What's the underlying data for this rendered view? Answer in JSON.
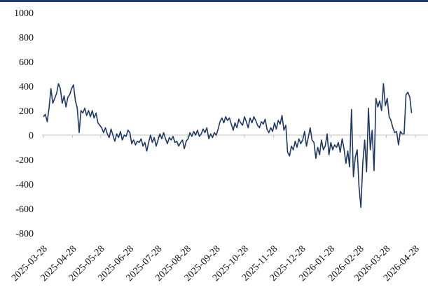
{
  "chart_data": {
    "type": "line",
    "title": "",
    "xlabel": "",
    "ylabel": "",
    "ylim": [
      -800,
      1000
    ],
    "y_ticks": [
      "1000",
      "800",
      "600",
      "400",
      "200",
      "0",
      "-200",
      "-400",
      "-600",
      "-800"
    ],
    "x_ticks": [
      "2025-03-28",
      "2025-04-28",
      "2025-05-28",
      "2025-06-28",
      "2025-07-28",
      "2025-08-28",
      "2025-09-28",
      "2025-10-28",
      "2025-11-28",
      "2025-12-28",
      "2026-01-28",
      "2026-02-28",
      "2026-03-28",
      "2026-04-28"
    ],
    "grid": false,
    "legend": "none",
    "colors": {
      "line": "#1f3864",
      "axis": "#bfbfbf",
      "top_rule": "#1f3b6e"
    },
    "series": [
      {
        "values": [
          [
            "2025-03-28",
            150
          ],
          [
            "2025-03-30",
            170
          ],
          [
            "2025-04-01",
            110
          ],
          [
            "2025-04-03",
            220
          ],
          [
            "2025-04-05",
            380
          ],
          [
            "2025-04-07",
            260
          ],
          [
            "2025-04-09",
            300
          ],
          [
            "2025-04-11",
            340
          ],
          [
            "2025-04-13",
            420
          ],
          [
            "2025-04-15",
            380
          ],
          [
            "2025-04-17",
            260
          ],
          [
            "2025-04-19",
            320
          ],
          [
            "2025-04-21",
            230
          ],
          [
            "2025-04-23",
            310
          ],
          [
            "2025-04-25",
            330
          ],
          [
            "2025-04-27",
            380
          ],
          [
            "2025-04-29",
            410
          ],
          [
            "2025-05-01",
            280
          ],
          [
            "2025-05-03",
            220
          ],
          [
            "2025-05-05",
            20
          ],
          [
            "2025-05-07",
            200
          ],
          [
            "2025-05-09",
            180
          ],
          [
            "2025-05-11",
            220
          ],
          [
            "2025-05-13",
            160
          ],
          [
            "2025-05-15",
            200
          ],
          [
            "2025-05-17",
            150
          ],
          [
            "2025-05-19",
            200
          ],
          [
            "2025-05-21",
            140
          ],
          [
            "2025-05-23",
            180
          ],
          [
            "2025-05-25",
            100
          ],
          [
            "2025-05-27",
            80
          ],
          [
            "2025-05-29",
            60
          ],
          [
            "2025-05-31",
            20
          ],
          [
            "2025-06-02",
            60
          ],
          [
            "2025-06-04",
            10
          ],
          [
            "2025-06-06",
            -20
          ],
          [
            "2025-06-08",
            50
          ],
          [
            "2025-06-10",
            0
          ],
          [
            "2025-06-12",
            -50
          ],
          [
            "2025-06-14",
            10
          ],
          [
            "2025-06-16",
            -20
          ],
          [
            "2025-06-18",
            30
          ],
          [
            "2025-06-20",
            -40
          ],
          [
            "2025-06-22",
            0
          ],
          [
            "2025-06-24",
            -10
          ],
          [
            "2025-06-26",
            40
          ],
          [
            "2025-06-28",
            20
          ],
          [
            "2025-06-30",
            -70
          ],
          [
            "2025-07-02",
            -40
          ],
          [
            "2025-07-04",
            -80
          ],
          [
            "2025-07-06",
            -50
          ],
          [
            "2025-07-08",
            -60
          ],
          [
            "2025-07-10",
            -30
          ],
          [
            "2025-07-12",
            -90
          ],
          [
            "2025-07-14",
            -60
          ],
          [
            "2025-07-16",
            -130
          ],
          [
            "2025-07-18",
            -60
          ],
          [
            "2025-07-20",
            0
          ],
          [
            "2025-07-22",
            -60
          ],
          [
            "2025-07-24",
            -20
          ],
          [
            "2025-07-26",
            -90
          ],
          [
            "2025-07-28",
            -40
          ],
          [
            "2025-07-30",
            10
          ],
          [
            "2025-08-01",
            -30
          ],
          [
            "2025-08-03",
            20
          ],
          [
            "2025-08-05",
            -30
          ],
          [
            "2025-08-07",
            -70
          ],
          [
            "2025-08-09",
            -20
          ],
          [
            "2025-08-11",
            -40
          ],
          [
            "2025-08-13",
            -10
          ],
          [
            "2025-08-15",
            -60
          ],
          [
            "2025-08-17",
            -50
          ],
          [
            "2025-08-19",
            -90
          ],
          [
            "2025-08-21",
            -60
          ],
          [
            "2025-08-23",
            -40
          ],
          [
            "2025-08-25",
            -110
          ],
          [
            "2025-08-27",
            -50
          ],
          [
            "2025-08-29",
            -30
          ],
          [
            "2025-08-31",
            20
          ],
          [
            "2025-09-02",
            -10
          ],
          [
            "2025-09-04",
            30
          ],
          [
            "2025-09-06",
            0
          ],
          [
            "2025-09-08",
            40
          ],
          [
            "2025-09-10",
            -10
          ],
          [
            "2025-09-12",
            10
          ],
          [
            "2025-09-14",
            50
          ],
          [
            "2025-09-16",
            20
          ],
          [
            "2025-09-18",
            60
          ],
          [
            "2025-09-20",
            -30
          ],
          [
            "2025-09-22",
            10
          ],
          [
            "2025-09-24",
            -20
          ],
          [
            "2025-09-26",
            20
          ],
          [
            "2025-09-28",
            0
          ],
          [
            "2025-09-30",
            50
          ],
          [
            "2025-10-02",
            110
          ],
          [
            "2025-10-04",
            140
          ],
          [
            "2025-10-06",
            100
          ],
          [
            "2025-10-08",
            150
          ],
          [
            "2025-10-10",
            120
          ],
          [
            "2025-10-12",
            140
          ],
          [
            "2025-10-14",
            90
          ],
          [
            "2025-10-16",
            40
          ],
          [
            "2025-10-18",
            100
          ],
          [
            "2025-10-20",
            60
          ],
          [
            "2025-10-22",
            130
          ],
          [
            "2025-10-24",
            100
          ],
          [
            "2025-10-26",
            80
          ],
          [
            "2025-10-28",
            150
          ],
          [
            "2025-10-30",
            110
          ],
          [
            "2025-11-01",
            60
          ],
          [
            "2025-11-03",
            140
          ],
          [
            "2025-11-05",
            100
          ],
          [
            "2025-11-07",
            150
          ],
          [
            "2025-11-09",
            120
          ],
          [
            "2025-11-11",
            80
          ],
          [
            "2025-11-13",
            60
          ],
          [
            "2025-11-15",
            110
          ],
          [
            "2025-11-17",
            90
          ],
          [
            "2025-11-19",
            130
          ],
          [
            "2025-11-21",
            50
          ],
          [
            "2025-11-23",
            20
          ],
          [
            "2025-11-25",
            60
          ],
          [
            "2025-11-27",
            30
          ],
          [
            "2025-11-29",
            100
          ],
          [
            "2025-12-01",
            50
          ],
          [
            "2025-12-03",
            120
          ],
          [
            "2025-12-05",
            90
          ],
          [
            "2025-12-07",
            160
          ],
          [
            "2025-12-09",
            40
          ],
          [
            "2025-12-11",
            80
          ],
          [
            "2025-12-13",
            -140
          ],
          [
            "2025-12-15",
            -170
          ],
          [
            "2025-12-17",
            -90
          ],
          [
            "2025-12-19",
            -120
          ],
          [
            "2025-12-21",
            -50
          ],
          [
            "2025-12-23",
            -100
          ],
          [
            "2025-12-25",
            -30
          ],
          [
            "2025-12-27",
            -70
          ],
          [
            "2025-12-29",
            -40
          ],
          [
            "2025-12-31",
            30
          ],
          [
            "2026-01-02",
            -90
          ],
          [
            "2026-01-04",
            -20
          ],
          [
            "2026-01-06",
            60
          ],
          [
            "2026-01-08",
            -40
          ],
          [
            "2026-01-10",
            -60
          ],
          [
            "2026-01-12",
            -190
          ],
          [
            "2026-01-14",
            -100
          ],
          [
            "2026-01-16",
            -160
          ],
          [
            "2026-01-18",
            -40
          ],
          [
            "2026-01-20",
            -120
          ],
          [
            "2026-01-22",
            -90
          ],
          [
            "2026-01-24",
            10
          ],
          [
            "2026-01-26",
            -160
          ],
          [
            "2026-01-28",
            -60
          ],
          [
            "2026-01-30",
            -120
          ],
          [
            "2026-02-01",
            -80
          ],
          [
            "2026-02-03",
            -100
          ],
          [
            "2026-02-05",
            -60
          ],
          [
            "2026-02-07",
            -140
          ],
          [
            "2026-02-09",
            -30
          ],
          [
            "2026-02-11",
            -110
          ],
          [
            "2026-02-13",
            -230
          ],
          [
            "2026-02-15",
            -130
          ],
          [
            "2026-02-17",
            -260
          ],
          [
            "2026-02-19",
            210
          ],
          [
            "2026-02-21",
            -340
          ],
          [
            "2026-02-23",
            -180
          ],
          [
            "2026-02-25",
            -120
          ],
          [
            "2026-02-27",
            -420
          ],
          [
            "2026-03-01",
            -590
          ],
          [
            "2026-03-03",
            -230
          ],
          [
            "2026-03-05",
            -40
          ],
          [
            "2026-03-07",
            -300
          ],
          [
            "2026-03-09",
            220
          ],
          [
            "2026-03-11",
            -120
          ],
          [
            "2026-03-13",
            40
          ],
          [
            "2026-03-15",
            -290
          ],
          [
            "2026-03-17",
            300
          ],
          [
            "2026-03-19",
            230
          ],
          [
            "2026-03-21",
            280
          ],
          [
            "2026-03-23",
            200
          ],
          [
            "2026-03-25",
            420
          ],
          [
            "2026-03-27",
            240
          ],
          [
            "2026-03-29",
            300
          ],
          [
            "2026-03-31",
            150
          ],
          [
            "2026-04-02",
            120
          ],
          [
            "2026-04-04",
            60
          ],
          [
            "2026-04-06",
            20
          ],
          [
            "2026-04-08",
            30
          ],
          [
            "2026-04-10",
            -80
          ],
          [
            "2026-04-12",
            30
          ],
          [
            "2026-04-14",
            10
          ],
          [
            "2026-04-16",
            10
          ],
          [
            "2026-04-18",
            330
          ],
          [
            "2026-04-20",
            350
          ],
          [
            "2026-04-22",
            310
          ],
          [
            "2026-04-24",
            180
          ]
        ]
      }
    ]
  }
}
